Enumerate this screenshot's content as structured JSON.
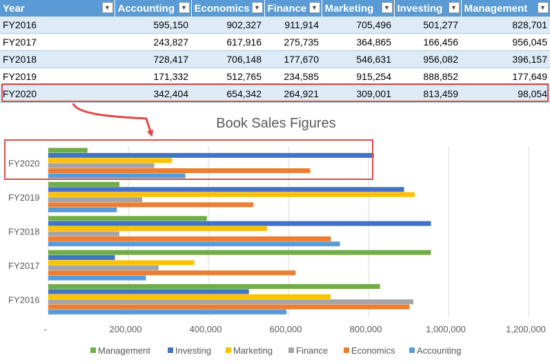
{
  "table": {
    "headers": [
      "Year",
      "Accounting",
      "Economics",
      "Finance",
      "Marketing",
      "Investing",
      "Management"
    ],
    "filter_icon": "filter-dropdown-icon",
    "rows": [
      [
        "FY2016",
        "595,150",
        "902,327",
        "911,914",
        "705,496",
        "501,277",
        "828,701"
      ],
      [
        "FY2017",
        "243,827",
        "617,916",
        "275,735",
        "364,865",
        "166,456",
        "956,045"
      ],
      [
        "FY2018",
        "728,417",
        "706,148",
        "177,670",
        "546,631",
        "956,082",
        "396,157"
      ],
      [
        "FY2019",
        "171,332",
        "512,765",
        "234,585",
        "915,254",
        "888,852",
        "177,649"
      ],
      [
        "FY2020",
        "342,404",
        "654,342",
        "264,921",
        "309,001",
        "813,459",
        "98,054"
      ]
    ],
    "highlighted_row": "FY2020"
  },
  "colors": {
    "header_bg": "#5b9bd5",
    "band_bg": "#ddebf7",
    "highlight_border": "#e04848",
    "management": "#70ad47",
    "investing": "#4472c4",
    "marketing": "#ffc000",
    "finance": "#a5a5a5",
    "economics": "#ed7d31",
    "accounting": "#5b9bd5"
  },
  "chart_data": {
    "type": "bar",
    "orientation": "horizontal",
    "title": "Book Sales Figures",
    "categories": [
      "FY2016",
      "FY2017",
      "FY2018",
      "FY2019",
      "FY2020"
    ],
    "series": [
      {
        "name": "Management",
        "values": [
          828701,
          956045,
          396157,
          177649,
          98054
        ]
      },
      {
        "name": "Investing",
        "values": [
          501277,
          166456,
          956082,
          888852,
          813459
        ]
      },
      {
        "name": "Marketing",
        "values": [
          705496,
          364865,
          546631,
          915254,
          309001
        ]
      },
      {
        "name": "Finance",
        "values": [
          911914,
          275735,
          177670,
          234585,
          264921
        ]
      },
      {
        "name": "Economics",
        "values": [
          902327,
          617916,
          706148,
          512765,
          654342
        ]
      },
      {
        "name": "Accounting",
        "values": [
          595150,
          243827,
          728417,
          171332,
          342404
        ]
      }
    ],
    "x_ticks": [
      "-",
      "200,000",
      "400,000",
      "600,000",
      "800,000",
      "1,000,000",
      "1,200,000"
    ],
    "xlim": [
      0,
      1200000
    ],
    "grid": true,
    "legend_position": "bottom",
    "highlighted_category": "FY2020"
  }
}
